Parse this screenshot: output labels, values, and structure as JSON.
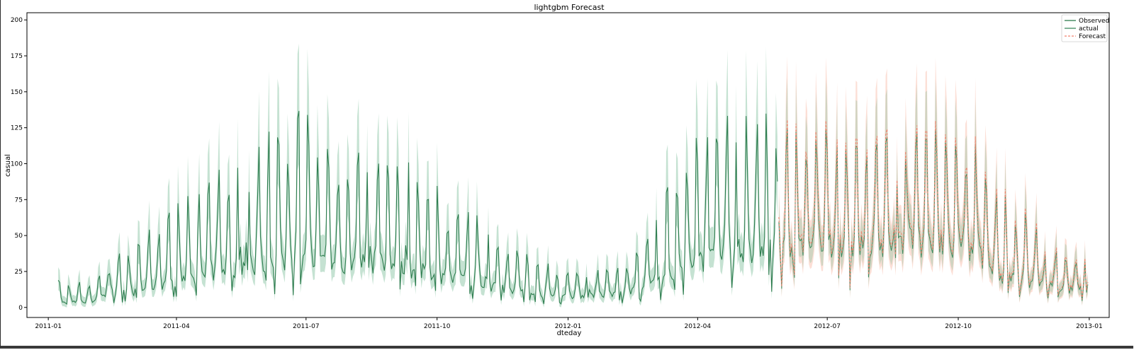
{
  "chart_data": {
    "type": "line",
    "title": "lightgbm Forecast",
    "xlabel": "dteday",
    "ylabel": "casual",
    "xlim": [
      "2010-12-17",
      "2013-01-15"
    ],
    "ylim": [
      -7,
      205
    ],
    "x_ticks": [
      "2011-01",
      "2011-04",
      "2011-07",
      "2011-10",
      "2012-01",
      "2012-04",
      "2012-07",
      "2012-10",
      "2013-01"
    ],
    "y_ticks": [
      0,
      25,
      50,
      75,
      100,
      125,
      150,
      175,
      200
    ],
    "legend": {
      "placement": "top-right",
      "entries": [
        "Observed",
        "actual",
        "Forecast"
      ]
    },
    "grid": false,
    "colors": {
      "observed": "#2e7d4f",
      "observed_band": "#7fbf9b",
      "forecast": "#f0826d",
      "forecast_band": "#f8b7a5"
    },
    "observed_start": "2011-01-08",
    "forecast_start": "2012-05-28",
    "series_end": "2012-12-31",
    "anchors": [
      [
        "2011-01-08",
        3.5,
        14
      ],
      [
        "2011-02-01",
        4,
        14
      ],
      [
        "2011-02-15",
        10,
        24
      ],
      [
        "2011-03-01",
        10,
        28
      ],
      [
        "2011-03-15",
        15,
        36
      ],
      [
        "2011-04-01",
        18,
        48
      ],
      [
        "2011-04-20",
        22,
        58
      ],
      [
        "2011-05-10",
        27,
        70
      ],
      [
        "2011-06-01",
        30,
        80
      ],
      [
        "2011-07-03",
        32,
        95
      ],
      [
        "2011-07-20",
        30,
        75
      ],
      [
        "2011-08-15",
        31,
        65
      ],
      [
        "2011-09-15",
        26,
        68
      ],
      [
        "2011-10-01",
        22,
        60
      ],
      [
        "2011-10-20",
        18,
        50
      ],
      [
        "2011-11-15",
        13,
        35
      ],
      [
        "2011-12-10",
        9,
        22
      ],
      [
        "2012-01-01",
        8,
        17
      ],
      [
        "2012-02-01",
        9,
        16
      ],
      [
        "2012-02-20",
        12,
        25
      ],
      [
        "2012-03-10",
        20,
        55
      ],
      [
        "2012-03-25",
        30,
        75
      ],
      [
        "2012-04-15",
        34,
        90
      ],
      [
        "2012-05-15",
        40,
        90
      ],
      [
        "2012-06-15",
        40,
        80
      ],
      [
        "2012-07-15",
        42,
        70
      ],
      [
        "2012-08-15",
        45,
        65
      ],
      [
        "2012-09-15",
        45,
        70
      ],
      [
        "2012-10-15",
        36,
        70
      ],
      [
        "2012-11-01",
        20,
        60
      ],
      [
        "2012-11-20",
        17,
        45
      ],
      [
        "2012-12-10",
        13,
        30
      ],
      [
        "2012-12-31",
        12,
        18
      ]
    ]
  }
}
